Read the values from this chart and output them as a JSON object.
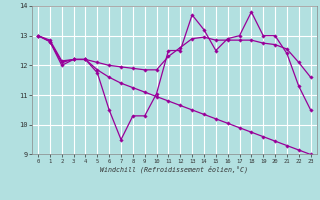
{
  "xlabel": "Windchill (Refroidissement éolien,°C)",
  "background_color": "#b2e0e0",
  "grid_color": "#ffffff",
  "line_color": "#990099",
  "xlim": [
    -0.5,
    23.5
  ],
  "ylim": [
    9,
    14
  ],
  "xticks": [
    0,
    1,
    2,
    3,
    4,
    5,
    6,
    7,
    8,
    9,
    10,
    11,
    12,
    13,
    14,
    15,
    16,
    17,
    18,
    19,
    20,
    21,
    22,
    23
  ],
  "yticks": [
    9,
    10,
    11,
    12,
    13,
    14
  ],
  "line1_x": [
    0,
    1,
    2,
    3,
    4,
    5,
    6,
    7,
    8,
    9,
    10,
    11,
    12,
    13,
    14,
    15,
    16,
    17,
    18,
    19,
    20,
    21,
    22,
    23
  ],
  "line1_y": [
    13.0,
    12.8,
    12.0,
    12.2,
    12.2,
    11.75,
    10.5,
    9.5,
    10.3,
    10.3,
    11.05,
    12.5,
    12.5,
    13.7,
    13.2,
    12.5,
    12.9,
    13.0,
    13.8,
    13.0,
    13.0,
    12.4,
    11.3,
    10.5
  ],
  "line2_x": [
    0,
    1,
    2,
    3,
    4,
    5,
    6,
    7,
    8,
    9,
    10,
    11,
    12,
    13,
    14,
    15,
    16,
    17,
    18,
    19,
    20,
    21,
    22,
    23
  ],
  "line2_y": [
    13.0,
    12.8,
    12.1,
    12.2,
    12.2,
    12.1,
    12.0,
    11.95,
    11.9,
    11.85,
    11.85,
    12.3,
    12.6,
    12.9,
    12.95,
    12.85,
    12.85,
    12.85,
    12.85,
    12.75,
    12.7,
    12.55,
    12.1,
    11.6
  ],
  "line3_x": [
    0,
    1,
    2,
    3,
    4,
    5,
    6,
    7,
    8,
    9,
    10,
    11,
    12,
    13,
    14,
    15,
    16,
    17,
    18,
    19,
    20,
    21,
    22,
    23
  ],
  "line3_y": [
    13.0,
    12.85,
    12.15,
    12.2,
    12.2,
    11.85,
    11.6,
    11.4,
    11.25,
    11.1,
    10.95,
    10.8,
    10.65,
    10.5,
    10.35,
    10.2,
    10.05,
    9.9,
    9.75,
    9.6,
    9.45,
    9.3,
    9.15,
    9.0
  ]
}
